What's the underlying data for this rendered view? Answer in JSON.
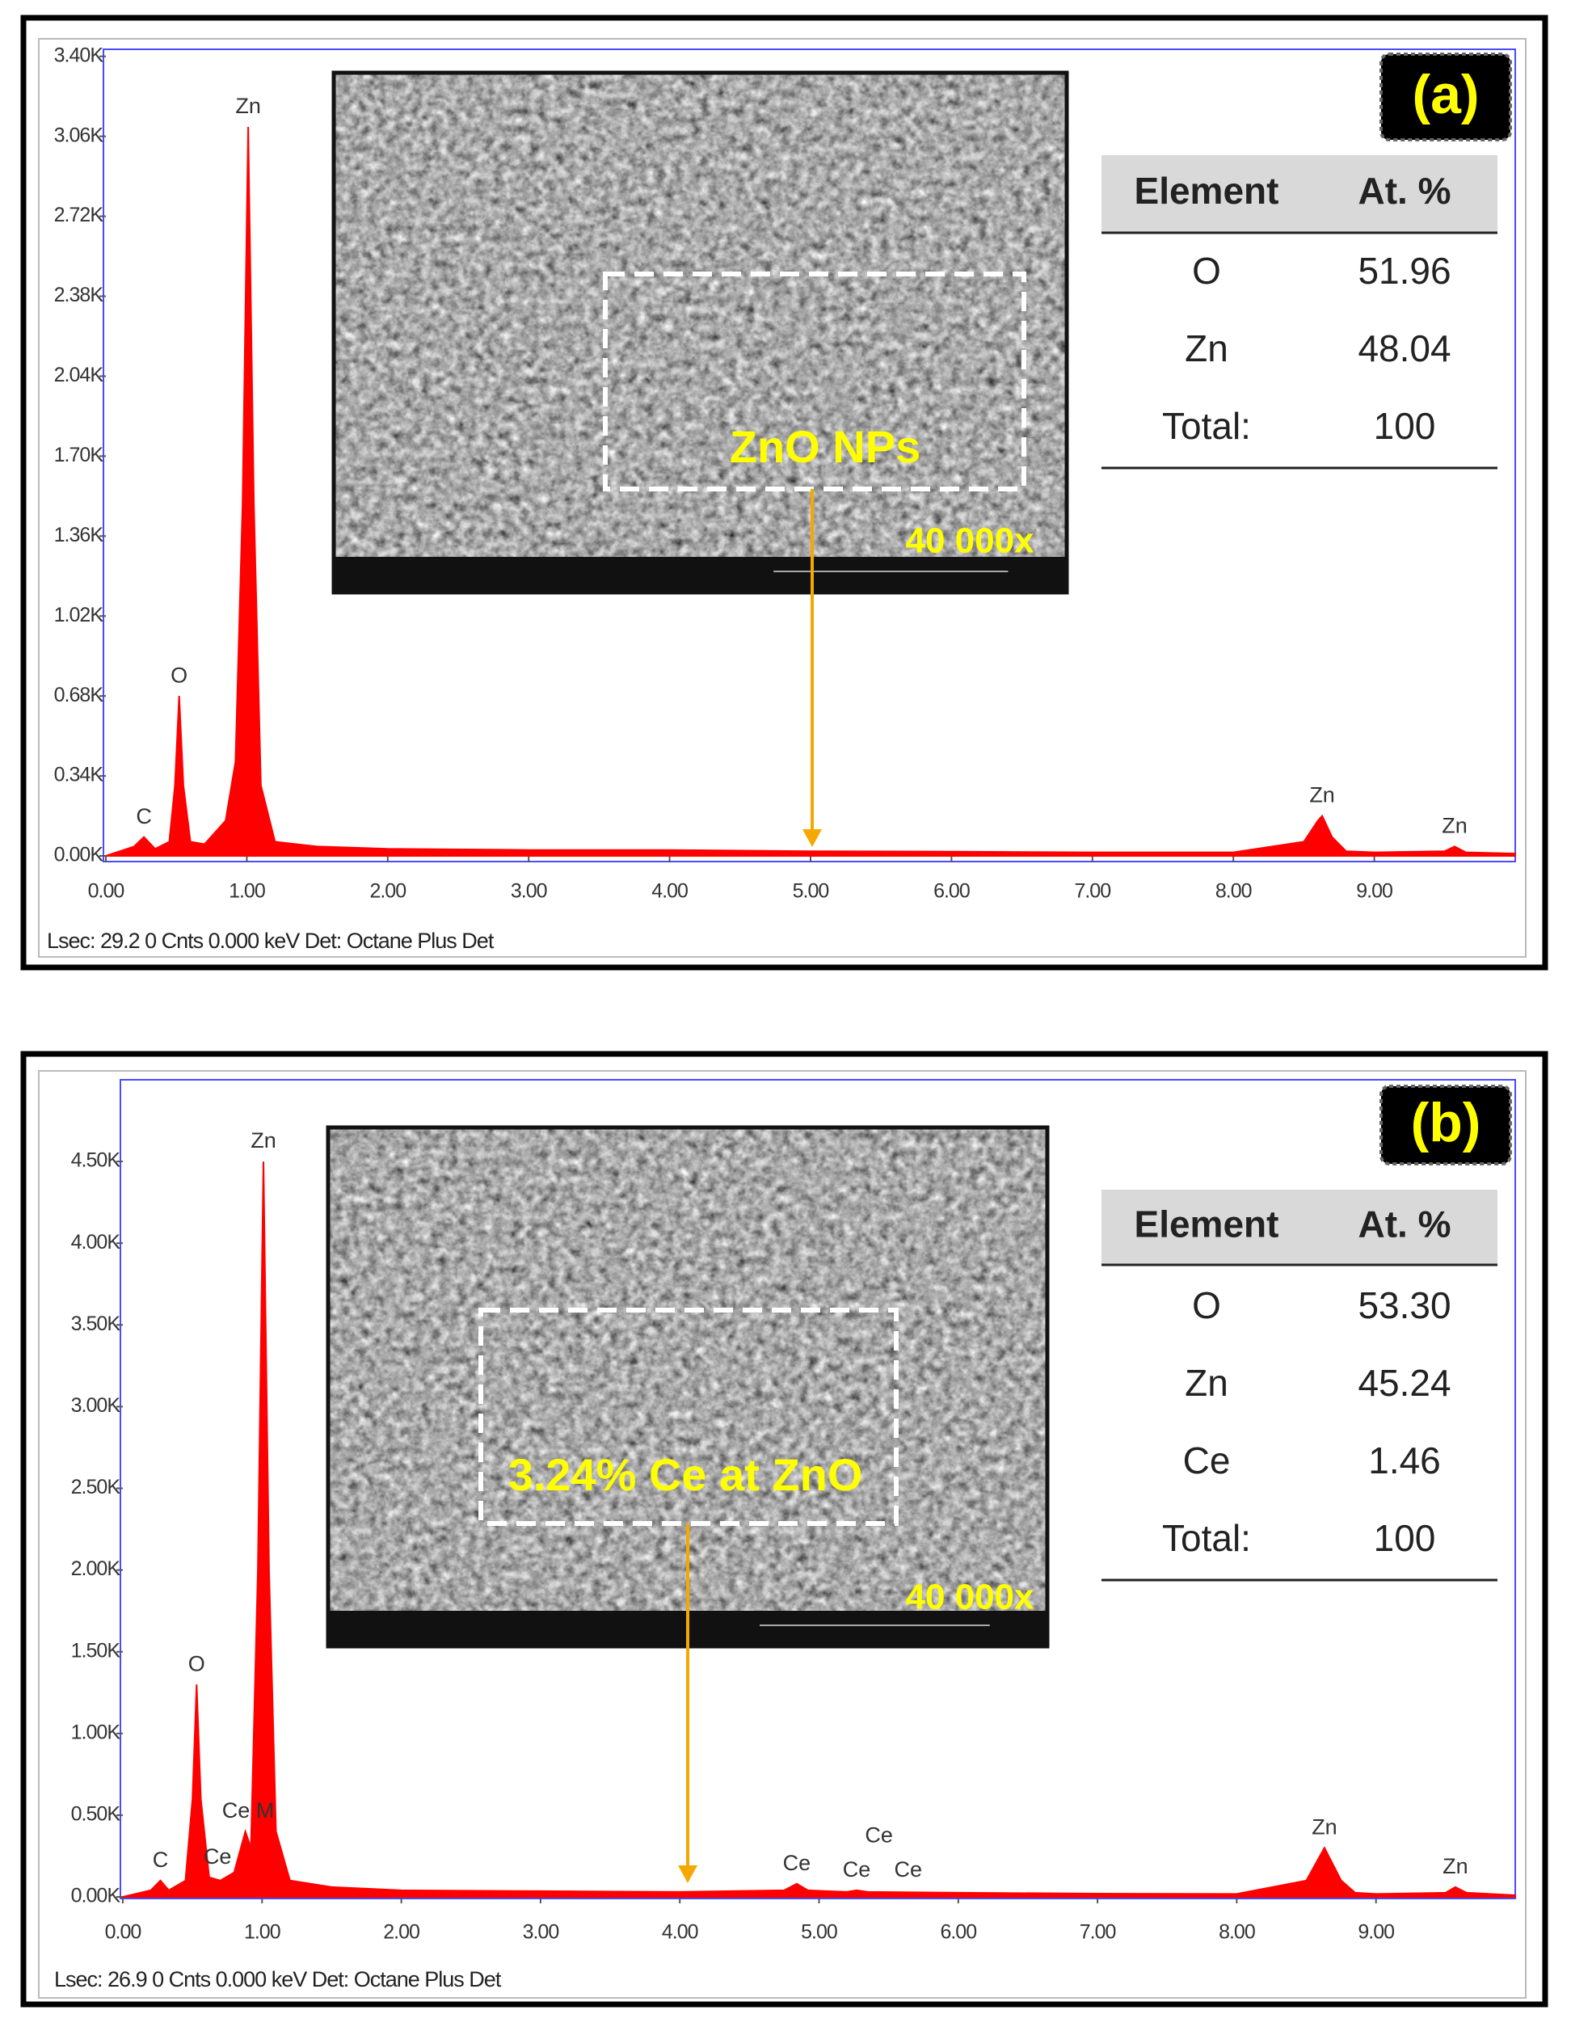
{
  "chart_data": [
    {
      "type": "area",
      "panel_label": "(a)",
      "color": "#ff0000",
      "x": [
        0,
        0.1,
        0.2,
        0.27,
        0.35,
        0.45,
        0.49,
        0.52,
        0.55,
        0.6,
        0.7,
        0.85,
        0.92,
        0.97,
        1.01,
        1.05,
        1.1,
        1.2,
        1.5,
        2,
        3,
        4,
        5,
        6,
        7,
        8,
        8.5,
        8.6,
        8.63,
        8.7,
        8.8,
        9,
        9.5,
        9.57,
        9.65,
        10
      ],
      "values": [
        0,
        20,
        40,
        80,
        30,
        60,
        300,
        680,
        300,
        60,
        50,
        150,
        400,
        1500,
        3100,
        1500,
        300,
        60,
        40,
        30,
        25,
        25,
        20,
        18,
        15,
        15,
        60,
        150,
        170,
        80,
        20,
        15,
        20,
        40,
        15,
        10
      ],
      "xlim": [
        0,
        10
      ],
      "ylim": [
        0,
        3430
      ],
      "xticks": [
        {
          "value": 0,
          "label": "0.00"
        },
        {
          "value": 1,
          "label": "1.00"
        },
        {
          "value": 2,
          "label": "2.00"
        },
        {
          "value": 3,
          "label": "3.00"
        },
        {
          "value": 4,
          "label": "4.00"
        },
        {
          "value": 5,
          "label": "5.00"
        },
        {
          "value": 6,
          "label": "6.00"
        },
        {
          "value": 7,
          "label": "7.00"
        },
        {
          "value": 8,
          "label": "8.00"
        },
        {
          "value": 9,
          "label": "9.00"
        }
      ],
      "yticks": [
        {
          "value": 0,
          "label": "0.00K"
        },
        {
          "value": 340,
          "label": "0.34K"
        },
        {
          "value": 680,
          "label": "0.68K"
        },
        {
          "value": 1020,
          "label": "1.02K"
        },
        {
          "value": 1360,
          "label": "1.36K"
        },
        {
          "value": 1700,
          "label": "1.70K"
        },
        {
          "value": 2040,
          "label": "2.04K"
        },
        {
          "value": 2380,
          "label": "2.38K"
        },
        {
          "value": 2720,
          "label": "2.72K"
        },
        {
          "value": 3060,
          "label": "3.06K"
        },
        {
          "value": 3400,
          "label": "3.40K"
        }
      ],
      "annotations": [
        {
          "text": "C",
          "x": 0.27,
          "y": 80
        },
        {
          "text": "O",
          "x": 0.52,
          "y": 680
        },
        {
          "text": "Zn",
          "x": 1.01,
          "y": 3100
        },
        {
          "text": "Zn",
          "x": 8.63,
          "y": 170
        },
        {
          "text": "Zn",
          "x": 9.57,
          "y": 40
        }
      ],
      "inset": {
        "caption": "ZnO NPs",
        "magnification": "40 000x"
      },
      "table": {
        "header": [
          "Element",
          "At. %"
        ],
        "rows": [
          [
            "O",
            "51.96"
          ],
          [
            "Zn",
            "48.04"
          ],
          [
            "Total:",
            "100"
          ]
        ]
      },
      "footer": "Lsec: 29.2 0 Cnts  0.000 keV Det: Octane Plus Det"
    },
    {
      "type": "area",
      "panel_label": "(b)",
      "color": "#ff0000",
      "x": [
        0,
        0.1,
        0.2,
        0.27,
        0.33,
        0.45,
        0.5,
        0.53,
        0.56,
        0.62,
        0.7,
        0.8,
        0.88,
        0.92,
        0.97,
        1.01,
        1.05,
        1.1,
        1.2,
        1.5,
        2,
        3,
        4,
        4.75,
        4.84,
        4.92,
        5.2,
        5.27,
        5.35,
        6,
        7,
        8,
        8.5,
        8.63,
        8.75,
        8.85,
        9,
        9.5,
        9.57,
        9.65,
        10
      ],
      "values": [
        0,
        20,
        40,
        100,
        40,
        100,
        600,
        1300,
        600,
        120,
        100,
        150,
        400,
        300,
        2000,
        4500,
        2000,
        400,
        100,
        60,
        40,
        35,
        30,
        40,
        80,
        40,
        30,
        40,
        30,
        25,
        20,
        18,
        100,
        300,
        100,
        25,
        18,
        25,
        60,
        25,
        10
      ],
      "xlim": [
        0,
        10
      ],
      "ylim": [
        0,
        5000
      ],
      "xticks": [
        {
          "value": 0,
          "label": "0.00"
        },
        {
          "value": 1,
          "label": "1.00"
        },
        {
          "value": 2,
          "label": "2.00"
        },
        {
          "value": 3,
          "label": "3.00"
        },
        {
          "value": 4,
          "label": "4.00"
        },
        {
          "value": 5,
          "label": "5.00"
        },
        {
          "value": 6,
          "label": "6.00"
        },
        {
          "value": 7,
          "label": "7.00"
        },
        {
          "value": 8,
          "label": "8.00"
        },
        {
          "value": 9,
          "label": "9.00"
        }
      ],
      "yticks": [
        {
          "value": 0,
          "label": "0.00K"
        },
        {
          "value": 500,
          "label": "0.50K"
        },
        {
          "value": 1000,
          "label": "1.00K"
        },
        {
          "value": 1500,
          "label": "1.50K"
        },
        {
          "value": 2000,
          "label": "2.00K"
        },
        {
          "value": 2500,
          "label": "2.50K"
        },
        {
          "value": 3000,
          "label": "3.00K"
        },
        {
          "value": 3500,
          "label": "3.50K"
        },
        {
          "value": 4000,
          "label": "4.00K"
        },
        {
          "value": 4500,
          "label": "4.50K"
        }
      ],
      "annotations": [
        {
          "text": "C",
          "x": 0.27,
          "y": 100
        },
        {
          "text": "O",
          "x": 0.53,
          "y": 1300
        },
        {
          "text": "Ce",
          "x": 0.68,
          "y": 120
        },
        {
          "text": "Ce M",
          "x": 0.9,
          "y": 400
        },
        {
          "text": "Zn",
          "x": 1.01,
          "y": 4500
        },
        {
          "text": "Ce",
          "x": 4.84,
          "y": 80
        },
        {
          "text": "Ce",
          "x": 5.27,
          "y": 40
        },
        {
          "text": "Ce",
          "x": 5.43,
          "y": 250
        },
        {
          "text": "Ce",
          "x": 5.64,
          "y": 40
        },
        {
          "text": "Zn",
          "x": 8.63,
          "y": 300
        },
        {
          "text": "Zn",
          "x": 9.57,
          "y": 60
        }
      ],
      "inset": {
        "caption": "3.24% Ce at ZnO",
        "magnification": "40 000x"
      },
      "table": {
        "header": [
          "Element",
          "At. %"
        ],
        "rows": [
          [
            "O",
            "53.30"
          ],
          [
            "Zn",
            "45.24"
          ],
          [
            "Ce",
            "1.46"
          ],
          [
            "Total:",
            "100"
          ]
        ]
      },
      "footer": "Lsec: 26.9 0 Cnts  0.000 keV Det: Octane Plus Det"
    }
  ]
}
